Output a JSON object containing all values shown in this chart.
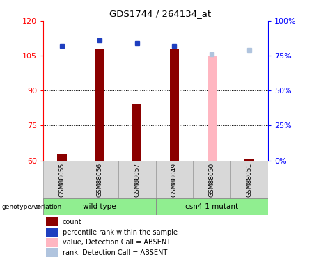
{
  "title": "GDS1744 / 264134_at",
  "samples": [
    "GSM88055",
    "GSM88056",
    "GSM88057",
    "GSM88049",
    "GSM88050",
    "GSM88051"
  ],
  "ylim_left": [
    60,
    120
  ],
  "ylim_right": [
    0,
    100
  ],
  "yticks_left": [
    60,
    75,
    90,
    105,
    120
  ],
  "yticks_right": [
    0,
    25,
    50,
    75,
    100
  ],
  "bar_values": [
    63,
    108,
    84,
    108,
    null,
    60.5
  ],
  "bar_absent_values": [
    null,
    null,
    null,
    null,
    105,
    null
  ],
  "bar_absent_color": "#FFB6C1",
  "bar_color": "#8B0000",
  "rank_values": [
    82,
    86,
    84,
    82,
    null,
    null
  ],
  "rank_absent_values": [
    null,
    null,
    null,
    null,
    76,
    79
  ],
  "rank_color": "#1F3FBF",
  "rank_absent_color": "#B0C4DE",
  "base_value": 60,
  "bar_width": 0.25,
  "grid_ticks": [
    75,
    90,
    105
  ],
  "group_wt_label": "wild type",
  "group_csn_label": "csn4-1 mutant",
  "genotype_label": "genotype/variation",
  "legend_items": [
    {
      "label": "count",
      "color": "#8B0000"
    },
    {
      "label": "percentile rank within the sample",
      "color": "#1F3FBF"
    },
    {
      "label": "value, Detection Call = ABSENT",
      "color": "#FFB6C1"
    },
    {
      "label": "rank, Detection Call = ABSENT",
      "color": "#B0C4DE"
    }
  ]
}
